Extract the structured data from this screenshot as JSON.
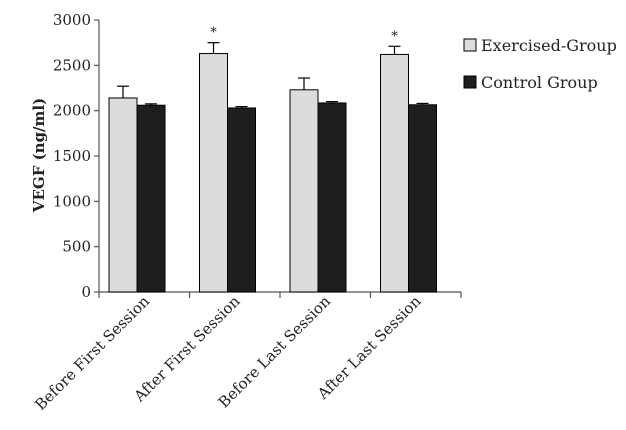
{
  "chart_data": {
    "type": "bar",
    "title": "",
    "xlabel": "",
    "ylabel": "VEGF (ng/ml)",
    "ylim": [
      0,
      3000
    ],
    "yticks": [
      0,
      500,
      1000,
      1500,
      2000,
      2500,
      3000
    ],
    "categories": [
      "Before First Session",
      "After First Session",
      "Before Last Session",
      "After Last Session"
    ],
    "series": [
      {
        "name": "Exercised-Group",
        "color": "#dcdcdc",
        "values": [
          2140,
          2630,
          2230,
          2620
        ],
        "errors": [
          130,
          120,
          130,
          90
        ],
        "annotations": [
          "",
          "*",
          "",
          "*"
        ]
      },
      {
        "name": "Control Group",
        "color": "#1e1e1e",
        "values": [
          2060,
          2030,
          2085,
          2065
        ],
        "errors": [
          15,
          15,
          15,
          15
        ],
        "annotations": [
          "",
          "",
          "",
          ""
        ]
      }
    ],
    "legend_position": "top-right",
    "grid": false
  }
}
